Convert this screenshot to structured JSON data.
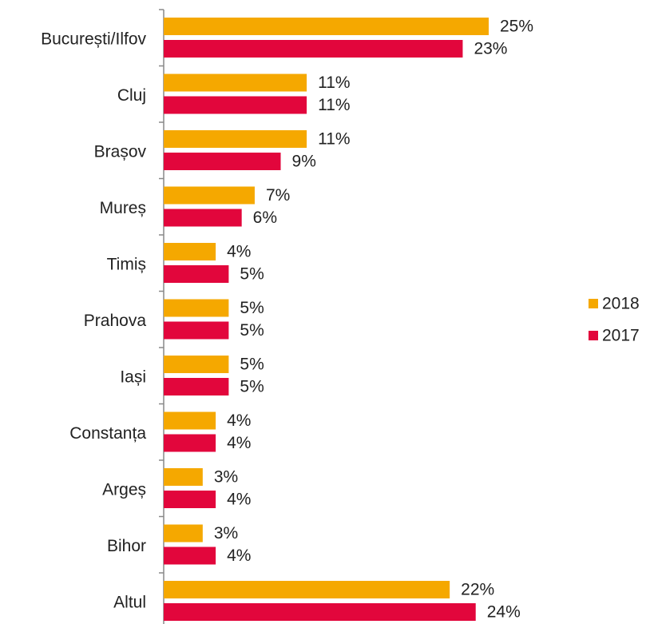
{
  "chart_data": {
    "type": "bar",
    "orientation": "horizontal",
    "categories": [
      "București/Ilfov",
      "Cluj",
      "Brașov",
      "Mureș",
      "Timiș",
      "Prahova",
      "Iași",
      "Constanța",
      "Argeș",
      "Bihor",
      "Altul"
    ],
    "series": [
      {
        "name": "2018",
        "color": "#f5a800",
        "values": [
          25,
          11,
          11,
          7,
          4,
          5,
          5,
          4,
          3,
          3,
          22
        ],
        "value_labels": [
          "25%",
          "11%",
          "11%",
          "7%",
          "4%",
          "5%",
          "5%",
          "4%",
          "3%",
          "3%",
          "22%"
        ]
      },
      {
        "name": "2017",
        "color": "#e2063c",
        "values": [
          23,
          11,
          9,
          6,
          5,
          5,
          5,
          4,
          4,
          4,
          24
        ],
        "value_labels": [
          "23%",
          "11%",
          "9%",
          "6%",
          "5%",
          "5%",
          "5%",
          "4%",
          "4%",
          "4%",
          "24%"
        ]
      }
    ],
    "legend": "right"
  }
}
